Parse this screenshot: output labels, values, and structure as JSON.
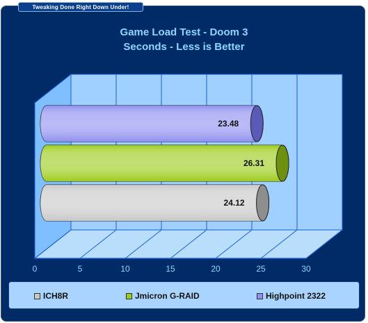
{
  "banner": "Tweaking Done Right Down Under!",
  "chart_data": {
    "type": "bar",
    "orientation": "horizontal",
    "title": "Game Load Test - Doom 3",
    "subtitle": "Seconds - Less is Better",
    "categories": [
      "Highpoint 2322",
      "Jmicron G-RAID",
      "ICH8R"
    ],
    "values": [
      23.48,
      26.31,
      24.12
    ],
    "colors": [
      "#8f8ff0",
      "#9ccc1a",
      "#c8c8c8"
    ],
    "data_labels": [
      "23.48",
      "26.31",
      "24.12"
    ],
    "xlim": [
      0,
      30
    ],
    "x_ticks": [
      "0",
      "5",
      "10",
      "15",
      "20",
      "25",
      "30"
    ],
    "grid": true,
    "legend": {
      "placement": "bottom",
      "entries": [
        {
          "label": "ICH8R",
          "color": "#c8c8c8"
        },
        {
          "label": "Jmicron G-RAID",
          "color": "#9ccc1a"
        },
        {
          "label": "Highpoint 2322",
          "color": "#8f8ff0"
        }
      ]
    }
  }
}
